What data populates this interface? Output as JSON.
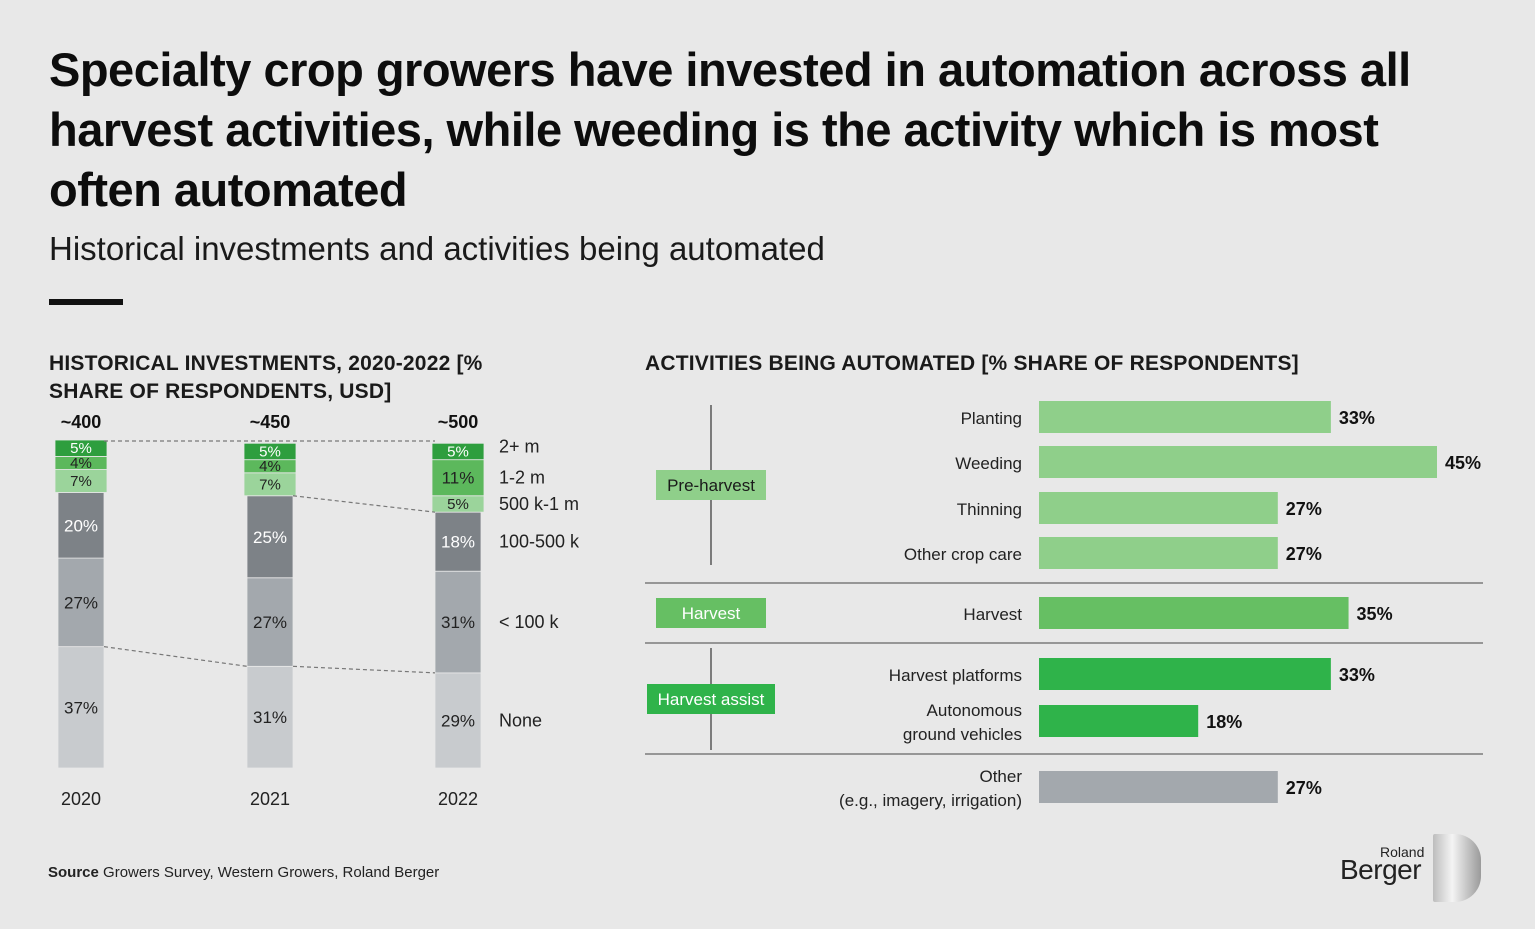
{
  "header": {
    "title": "Specialty crop growers have invested in automation across all harvest activities, while weeding is the activity which is most often automated",
    "subtitle": "Historical investments and activities being automated"
  },
  "left_chart_heading": "HISTORICAL INVESTMENTS, 2020-2022 [% SHARE OF RESPONDENTS, USD]",
  "right_chart_heading": "ACTIVITIES BEING AUTOMATED [% SHARE OF RESPONDENTS]",
  "footer": {
    "source_label": "Source",
    "source_text": "Growers Survey, Western Growers, Roland Berger",
    "logo_top": "Roland",
    "logo_bottom": "Berger"
  },
  "chart_data": [
    {
      "type": "bar",
      "stacked": true,
      "categories": [
        "2020",
        "2021",
        "2022"
      ],
      "totals": [
        "~400",
        "~450",
        "~500"
      ],
      "series": [
        {
          "name": "None",
          "values": [
            37,
            31,
            29
          ],
          "color": "#c8cbce"
        },
        {
          "name": "< 100 k",
          "values": [
            27,
            27,
            31
          ],
          "color": "#a3a8ad"
        },
        {
          "name": "100-500 k",
          "values": [
            20,
            25,
            18
          ],
          "color": "#7d8287"
        },
        {
          "name": "500 k-1 m",
          "values": [
            7,
            7,
            5
          ],
          "color": "#9bd49b"
        },
        {
          "name": "1-2 m",
          "values": [
            4,
            4,
            11
          ],
          "color": "#5cb85c"
        },
        {
          "name": "2+ m",
          "values": [
            5,
            5,
            5
          ],
          "color": "#2e9e3e"
        }
      ],
      "value_suffix": "%"
    },
    {
      "type": "bar",
      "orientation": "horizontal",
      "groups": [
        {
          "name": "Pre-harvest",
          "color": "#8fcf8a",
          "items": [
            {
              "label": "Planting",
              "value": 33
            },
            {
              "label": "Weeding",
              "value": 45
            },
            {
              "label": "Thinning",
              "value": 27
            },
            {
              "label": "Other crop care",
              "value": 27
            }
          ]
        },
        {
          "name": "Harvest",
          "color": "#66bf63",
          "items": [
            {
              "label": "Harvest",
              "value": 35
            }
          ]
        },
        {
          "name": "Harvest assist",
          "color": "#2fb34a",
          "items": [
            {
              "label": "Harvest platforms",
              "value": 33
            },
            {
              "label": "Autonomous\nground vehicles",
              "value": 18
            }
          ]
        },
        {
          "name": "",
          "color": "#a3a8ad",
          "items": [
            {
              "label": "Other\n(e.g., imagery, irrigation)",
              "value": 27
            }
          ]
        }
      ],
      "value_suffix": "%",
      "xlim": [
        0,
        45
      ]
    }
  ]
}
